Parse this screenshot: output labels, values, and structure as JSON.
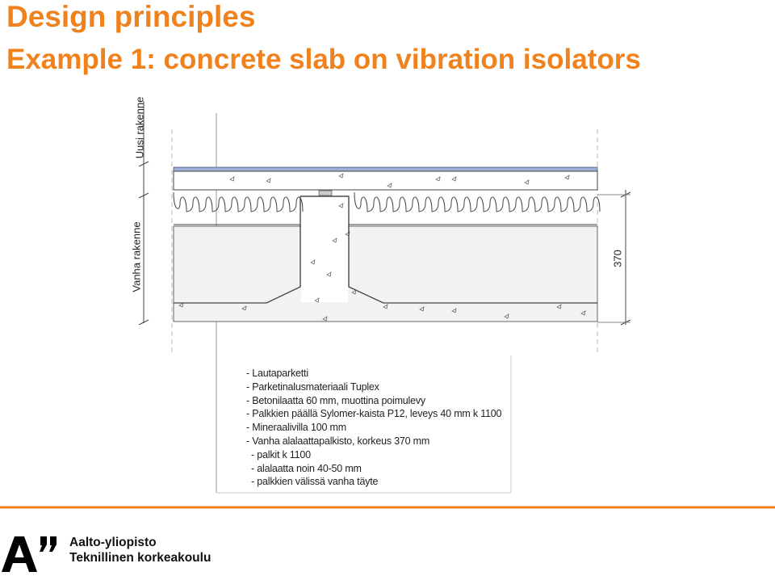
{
  "header": {
    "title": "Design principles",
    "subtitle": "Example 1: concrete slab on vibration isolators"
  },
  "drawing": {
    "new_structure": "Uusi rakenne",
    "old_structure": "Vanha rakenne",
    "dimension": "370"
  },
  "notes": {
    "items": [
      "- Lautaparketti",
      "- Parketinalusmateriaali Tuplex",
      "- Betonilaatta 60 mm, muottina poimulevy",
      "- Palkkien päällä Sylomer-kaista P12, leveys 40 mm k 1100",
      "- Mineraalivilla 100 mm",
      "- Vanha alalaattapalkisto, korkeus 370 mm"
    ],
    "sub_items": [
      "- palkit k 1100",
      "- alalaatta noin 40-50 mm",
      "- palkkien välissä vanha täyte"
    ]
  },
  "footer": {
    "organization": "Aalto-yliopisto",
    "school": "Teknillinen korkeakoulu"
  }
}
